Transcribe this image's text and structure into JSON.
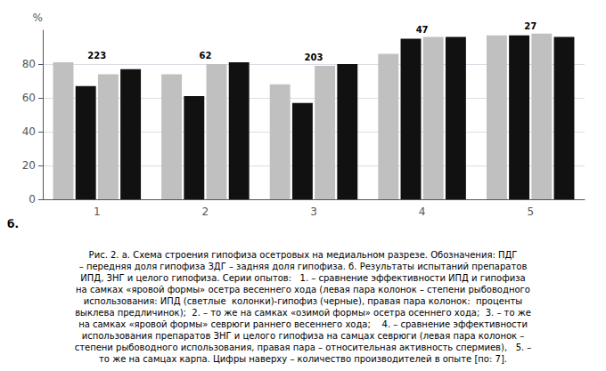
{
  "chart_data": {
    "type": "bar",
    "categories": [
      "1",
      "2",
      "3",
      "4",
      "5"
    ],
    "series": [
      {
        "color": "#c0c0c0",
        "values": [
          81,
          74,
          68,
          86,
          97
        ]
      },
      {
        "color": "#111111",
        "values": [
          67,
          61,
          57,
          95,
          97
        ]
      },
      {
        "color": "#c0c0c0",
        "values": [
          74,
          80,
          79,
          96,
          98
        ]
      },
      {
        "color": "#111111",
        "values": [
          77,
          81,
          80,
          96,
          96
        ]
      }
    ],
    "ylabel": "%",
    "ylim": [
      0,
      100
    ],
    "yticks": [
      0,
      20,
      40,
      60,
      80
    ],
    "grid": true,
    "annotations": [
      {
        "category": "1",
        "text": "223"
      },
      {
        "category": "2",
        "text": "62"
      },
      {
        "category": "3",
        "text": "203"
      },
      {
        "category": "4",
        "text": "47"
      },
      {
        "category": "5",
        "text": "27"
      },
      {
        "text": "б."
      }
    ],
    "caption": [
      "Рис. 2. а. Схема строения гипофиза осетровых на медиальном разрезе. Обозначения: ПДГ",
      "– передняя доля гипофиза ЗДГ – задняя доля гипофиза. б. Результаты испытаний препаратов",
      "ИПД, ЗНГ и целого гипофиза. Серии опытов:   1. – сравнение эффективности ИПД и гипофиза",
      "на самках «яровой формы» осетра весеннего хода (левая пара колонок – степени рыбоводного",
      "использования: ИПД (светлые  колонки)-гипофиз (черные), правая пара колонок:  проценты",
      "выклева предличинок);  2. – то же на самках «озимой формы» осетра осеннего хода;  3. – то же",
      "на самках «яровой формы» севрюги раннего весеннего хода;    4. – сравнение эффективности",
      "использования препаратов ЗНГ и целого гипофиза на самцах севрюги (левая пара колонок –",
      "степени рыбоводного использования, правая пара – относительная активность спермиев),   5. –",
      "то же на самцах карпа. Цифры наверху – количество производителей в опыте [по: 7]."
    ]
  }
}
